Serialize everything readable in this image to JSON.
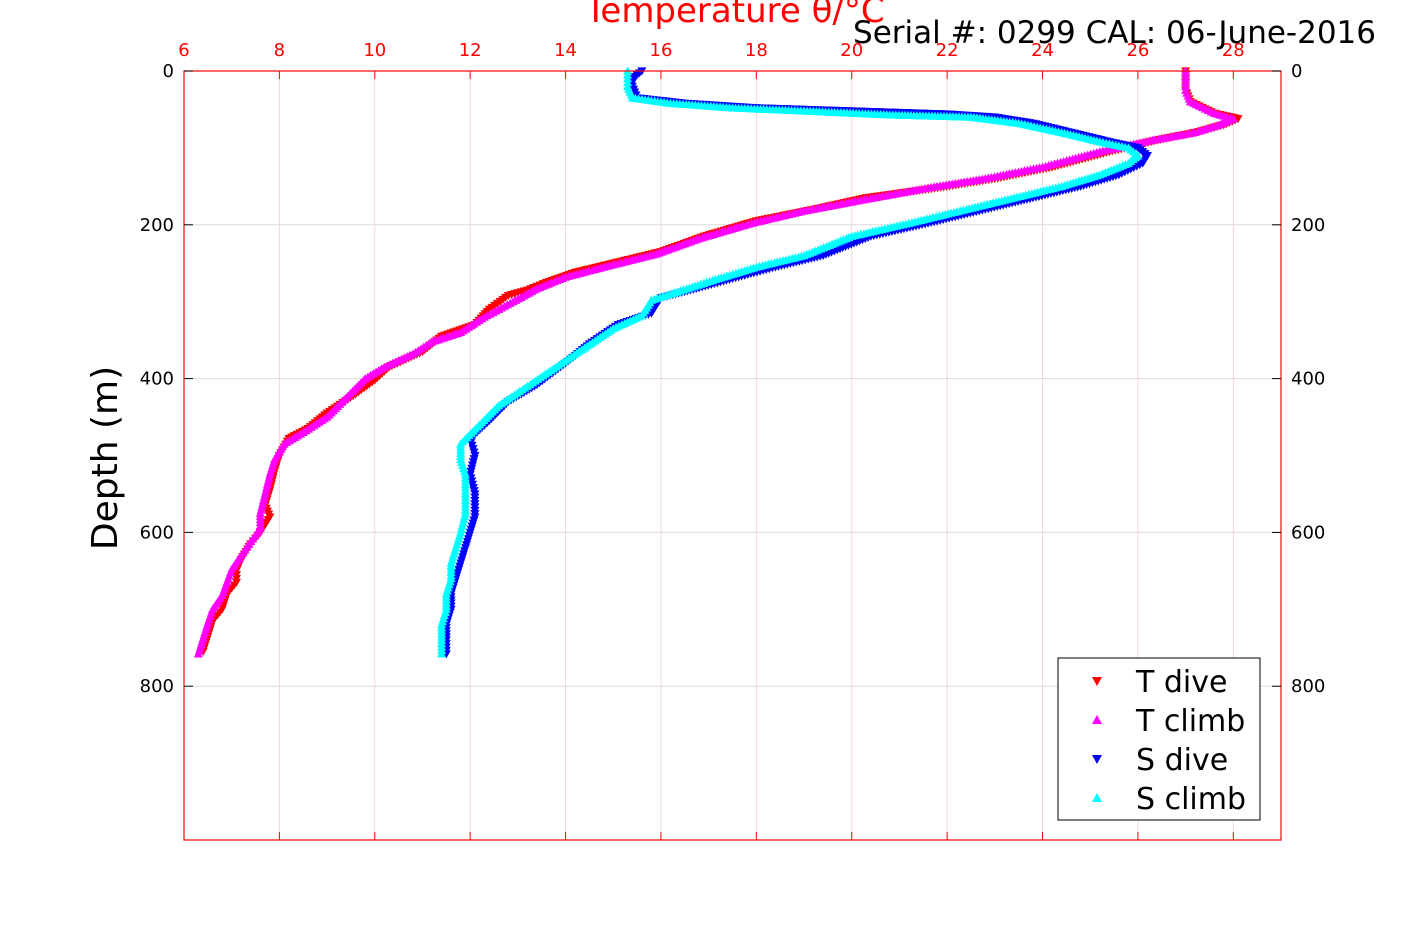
{
  "chart_data": {
    "type": "scatter",
    "title": "Temperature θ/°C",
    "subtitle": "Serial #: 0299 CAL: 06-June-2016",
    "xlabel": "Temperature θ/°C",
    "ylabel": "Depth (m)",
    "xlim": [
      6,
      29
    ],
    "ylim": [
      0,
      1000
    ],
    "y_reversed": true,
    "x_ticks": [
      6,
      8,
      10,
      12,
      14,
      16,
      18,
      20,
      22,
      24,
      26,
      28
    ],
    "y_ticks": [
      0,
      200,
      400,
      600,
      800
    ],
    "grid": true,
    "legend_position": "bottom-right",
    "series": [
      {
        "name": "T dive",
        "color": "#ff0000",
        "marker": "triangle-down",
        "points": [
          [
            27.0,
            0
          ],
          [
            27.0,
            10
          ],
          [
            27.0,
            25
          ],
          [
            27.1,
            40
          ],
          [
            27.6,
            55
          ],
          [
            28.1,
            62
          ],
          [
            27.8,
            70
          ],
          [
            27.2,
            80
          ],
          [
            26.4,
            90
          ],
          [
            25.4,
            105
          ],
          [
            24.2,
            125
          ],
          [
            23.0,
            140
          ],
          [
            21.8,
            152
          ],
          [
            20.3,
            165
          ],
          [
            19.2,
            180
          ],
          [
            18.0,
            195
          ],
          [
            16.9,
            215
          ],
          [
            16.0,
            235
          ],
          [
            15.0,
            250
          ],
          [
            14.2,
            262
          ],
          [
            13.6,
            275
          ],
          [
            13.2,
            285
          ],
          [
            12.8,
            292
          ],
          [
            12.4,
            310
          ],
          [
            12.1,
            330
          ],
          [
            11.4,
            345
          ],
          [
            11.0,
            365
          ],
          [
            10.3,
            385
          ],
          [
            10.0,
            402
          ],
          [
            9.6,
            420
          ],
          [
            9.0,
            445
          ],
          [
            8.6,
            465
          ],
          [
            8.2,
            478
          ],
          [
            8.0,
            500
          ],
          [
            7.9,
            520
          ],
          [
            7.8,
            545
          ],
          [
            7.7,
            565
          ],
          [
            7.8,
            580
          ],
          [
            7.6,
            600
          ],
          [
            7.4,
            615
          ],
          [
            7.2,
            635
          ],
          [
            7.1,
            650
          ],
          [
            7.1,
            665
          ],
          [
            6.9,
            680
          ],
          [
            6.8,
            700
          ],
          [
            6.6,
            715
          ],
          [
            6.5,
            735
          ],
          [
            6.4,
            755
          ]
        ]
      },
      {
        "name": "T climb",
        "color": "#ff00ff",
        "marker": "triangle-up",
        "points": [
          [
            27.0,
            0
          ],
          [
            27.0,
            10
          ],
          [
            27.0,
            25
          ],
          [
            27.1,
            40
          ],
          [
            27.6,
            55
          ],
          [
            28.0,
            62
          ],
          [
            27.7,
            70
          ],
          [
            27.2,
            80
          ],
          [
            26.3,
            90
          ],
          [
            25.2,
            105
          ],
          [
            24.0,
            125
          ],
          [
            22.8,
            140
          ],
          [
            21.6,
            152
          ],
          [
            20.2,
            168
          ],
          [
            19.0,
            182
          ],
          [
            17.9,
            198
          ],
          [
            16.8,
            218
          ],
          [
            15.9,
            238
          ],
          [
            14.8,
            255
          ],
          [
            14.0,
            268
          ],
          [
            13.4,
            283
          ],
          [
            12.9,
            300
          ],
          [
            12.3,
            320
          ],
          [
            11.8,
            340
          ],
          [
            11.2,
            352
          ],
          [
            10.8,
            368
          ],
          [
            10.2,
            385
          ],
          [
            9.8,
            400
          ],
          [
            9.4,
            425
          ],
          [
            9.0,
            450
          ],
          [
            8.5,
            470
          ],
          [
            8.1,
            485
          ],
          [
            7.9,
            505
          ],
          [
            7.8,
            525
          ],
          [
            7.7,
            550
          ],
          [
            7.6,
            575
          ],
          [
            7.6,
            595
          ],
          [
            7.4,
            612
          ],
          [
            7.2,
            630
          ],
          [
            7.0,
            648
          ],
          [
            6.9,
            665
          ],
          [
            6.8,
            682
          ],
          [
            6.6,
            700
          ],
          [
            6.5,
            718
          ],
          [
            6.4,
            738
          ],
          [
            6.3,
            758
          ]
        ]
      },
      {
        "name": "S dive",
        "color": "#0000ff",
        "marker": "triangle-down",
        "points": [
          [
            15.6,
            0
          ],
          [
            15.4,
            10
          ],
          [
            15.4,
            20
          ],
          [
            15.5,
            35
          ],
          [
            16.5,
            42
          ],
          [
            18.0,
            48
          ],
          [
            20.0,
            52
          ],
          [
            22.0,
            56
          ],
          [
            23.0,
            60
          ],
          [
            23.8,
            68
          ],
          [
            24.6,
            80
          ],
          [
            25.4,
            92
          ],
          [
            26.0,
            100
          ],
          [
            26.2,
            110
          ],
          [
            26.1,
            120
          ],
          [
            25.6,
            135
          ],
          [
            24.8,
            150
          ],
          [
            23.8,
            165
          ],
          [
            22.8,
            180
          ],
          [
            21.6,
            198
          ],
          [
            20.4,
            215
          ],
          [
            19.4,
            240
          ],
          [
            18.4,
            255
          ],
          [
            17.5,
            270
          ],
          [
            16.8,
            282
          ],
          [
            16.0,
            295
          ],
          [
            15.8,
            315
          ],
          [
            15.1,
            330
          ],
          [
            14.5,
            355
          ],
          [
            14.0,
            380
          ],
          [
            13.4,
            408
          ],
          [
            12.8,
            430
          ],
          [
            12.4,
            455
          ],
          [
            12.0,
            478
          ],
          [
            12.1,
            500
          ],
          [
            12.0,
            525
          ],
          [
            12.1,
            550
          ],
          [
            12.1,
            580
          ],
          [
            12.0,
            600
          ],
          [
            11.9,
            620
          ],
          [
            11.8,
            640
          ],
          [
            11.7,
            660
          ],
          [
            11.6,
            680
          ],
          [
            11.6,
            700
          ],
          [
            11.5,
            720
          ],
          [
            11.5,
            740
          ],
          [
            11.5,
            758
          ]
        ]
      },
      {
        "name": "S climb",
        "color": "#00ffff",
        "marker": "triangle-up",
        "points": [
          [
            15.3,
            0
          ],
          [
            15.3,
            10
          ],
          [
            15.3,
            20
          ],
          [
            15.4,
            35
          ],
          [
            16.2,
            42
          ],
          [
            17.5,
            48
          ],
          [
            19.0,
            52
          ],
          [
            20.8,
            57
          ],
          [
            22.5,
            60
          ],
          [
            23.5,
            68
          ],
          [
            24.4,
            80
          ],
          [
            25.2,
            92
          ],
          [
            25.8,
            100
          ],
          [
            26.0,
            110
          ],
          [
            25.8,
            120
          ],
          [
            25.2,
            135
          ],
          [
            24.4,
            150
          ],
          [
            23.4,
            165
          ],
          [
            22.4,
            180
          ],
          [
            21.2,
            198
          ],
          [
            20.0,
            215
          ],
          [
            19.0,
            240
          ],
          [
            18.0,
            255
          ],
          [
            17.2,
            270
          ],
          [
            16.6,
            282
          ],
          [
            15.8,
            298
          ],
          [
            15.6,
            318
          ],
          [
            15.0,
            335
          ],
          [
            14.4,
            360
          ],
          [
            13.8,
            385
          ],
          [
            13.2,
            410
          ],
          [
            12.6,
            435
          ],
          [
            12.2,
            460
          ],
          [
            11.8,
            485
          ],
          [
            11.8,
            505
          ],
          [
            11.9,
            525
          ],
          [
            11.9,
            550
          ],
          [
            11.9,
            575
          ],
          [
            11.8,
            600
          ],
          [
            11.7,
            620
          ],
          [
            11.6,
            640
          ],
          [
            11.6,
            660
          ],
          [
            11.5,
            680
          ],
          [
            11.5,
            700
          ],
          [
            11.4,
            720
          ],
          [
            11.4,
            740
          ],
          [
            11.4,
            758
          ]
        ]
      }
    ]
  }
}
